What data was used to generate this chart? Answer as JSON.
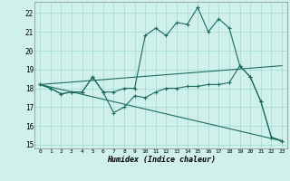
{
  "xlabel": "Humidex (Indice chaleur)",
  "xlim": [
    -0.5,
    23.5
  ],
  "ylim": [
    14.8,
    22.6
  ],
  "yticks": [
    15,
    16,
    17,
    18,
    19,
    20,
    21,
    22
  ],
  "xticks": [
    0,
    1,
    2,
    3,
    4,
    5,
    6,
    7,
    8,
    9,
    10,
    11,
    12,
    13,
    14,
    15,
    16,
    17,
    18,
    19,
    20,
    21,
    22,
    23
  ],
  "background_color": "#cff0eb",
  "grid_color": "#a8ddd7",
  "line_color": "#1e6b62",
  "line1_x": [
    0,
    1,
    2,
    3,
    4,
    5,
    6,
    7,
    8,
    9,
    10,
    11,
    12,
    13,
    14,
    15,
    16,
    17,
    18,
    19,
    20,
    21,
    22,
    23
  ],
  "line1_y": [
    18.2,
    18.0,
    17.7,
    17.8,
    17.8,
    18.6,
    17.8,
    16.7,
    17.0,
    17.6,
    17.5,
    17.8,
    18.0,
    18.0,
    18.1,
    18.1,
    18.2,
    18.2,
    18.3,
    19.2,
    18.6,
    17.3,
    15.4,
    15.2
  ],
  "line2_x": [
    0,
    1,
    2,
    3,
    4,
    5,
    6,
    7,
    8,
    9,
    10,
    11,
    12,
    13,
    14,
    15,
    16,
    17,
    18,
    19,
    20,
    21,
    22,
    23
  ],
  "line2_y": [
    18.2,
    18.0,
    17.7,
    17.8,
    17.8,
    18.6,
    17.8,
    17.8,
    18.0,
    18.0,
    20.8,
    21.2,
    20.8,
    21.5,
    21.4,
    22.3,
    21.0,
    21.7,
    21.2,
    19.2,
    18.6,
    17.3,
    15.4,
    15.2
  ],
  "line3_x": [
    0,
    23
  ],
  "line3_y": [
    18.2,
    19.2
  ],
  "line4_x": [
    0,
    23
  ],
  "line4_y": [
    18.2,
    15.2
  ]
}
